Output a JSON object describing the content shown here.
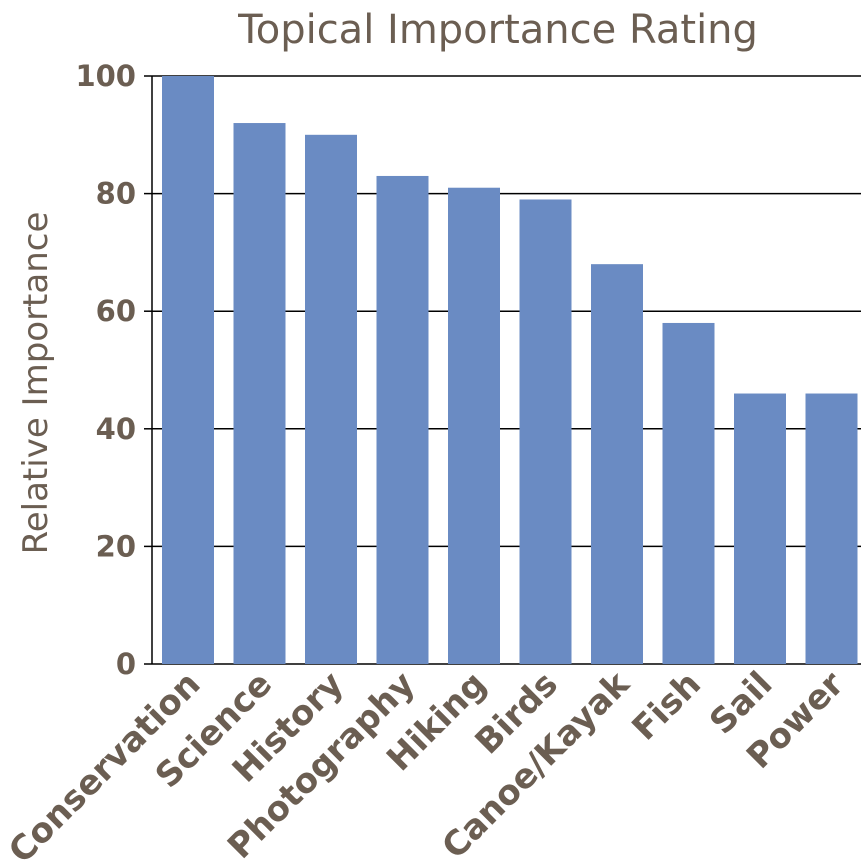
{
  "colors": {
    "bar": "#6A8BC3",
    "text": "#6B5E52",
    "grid": "#000000",
    "background": "#ffffff"
  },
  "chart_data": {
    "type": "bar",
    "title": "Topical Importance Rating",
    "xlabel": "",
    "ylabel": "Relative Importance",
    "categories": [
      "Conservation",
      "Science",
      "History",
      "Photography",
      "Hiking",
      "Birds",
      "Canoe/Kayak",
      "Fish",
      "Sail",
      "Power"
    ],
    "values": [
      100,
      92,
      90,
      83,
      81,
      79,
      68,
      58,
      46,
      46
    ],
    "ylim": [
      0,
      100
    ],
    "yticks": [
      "0",
      "20",
      "40",
      "60",
      "80",
      "100"
    ],
    "grid": true,
    "legend": "none"
  }
}
